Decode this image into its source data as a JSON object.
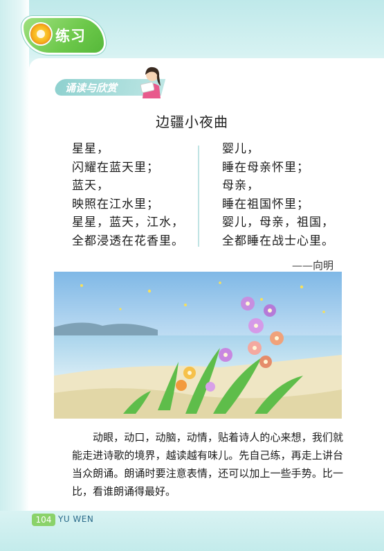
{
  "header": {
    "title": "练习"
  },
  "section": {
    "label": "诵读与欣赏"
  },
  "poem": {
    "title": "边疆小夜曲",
    "left_lines": [
      "星星，",
      "闪耀在蓝天里；",
      "蓝天，",
      "映照在江水里；",
      "星星，蓝天，江水，",
      "全都浸透在花香里。"
    ],
    "right_lines": [
      "婴儿，",
      "睡在母亲怀里；",
      "母亲，",
      "睡在祖国怀里；",
      "婴儿，母亲，祖国，",
      "全都睡在战士心里。"
    ],
    "author": "——向明"
  },
  "paragraph": "动眼，动口，动脑，动情，贴着诗人的心来想，我们就能走进诗歌的境界，越读越有味儿。先自己练，再走上讲台当众朗诵。朗诵时要注意表情，还可以加上一些手势。比一比，看谁朗诵得最好。",
  "footer": {
    "page_number": "104",
    "label": "YU WEN"
  },
  "icons": {
    "header_badge": "flower-icon",
    "reader": "reading-girl-icon"
  },
  "colors": {
    "badge_green": "#6cc84a",
    "teal": "#8fd1cf",
    "page_bg": "#bfe9ea"
  }
}
